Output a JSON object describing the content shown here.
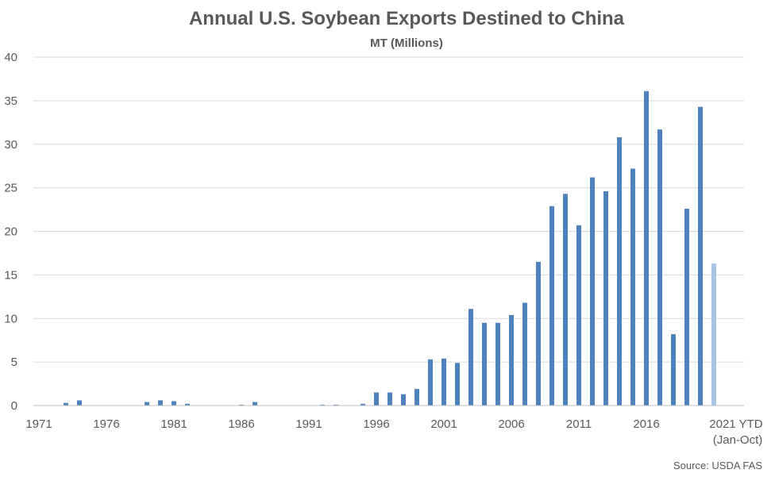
{
  "chart_data": {
    "type": "bar",
    "title": "Annual U.S. Soybean Exports Destined to China",
    "subtitle": "MT (Millions)",
    "xlabel": "",
    "ylabel": "",
    "ylim": [
      0,
      40
    ],
    "yticks": [
      0,
      5,
      10,
      15,
      20,
      25,
      30,
      35,
      40
    ],
    "grid": true,
    "legend": "none",
    "source": "Source: USDA FAS",
    "xtick_labels": [
      "1971",
      "1976",
      "1981",
      "1986",
      "1991",
      "1996",
      "2001",
      "2006",
      "2011",
      "2016"
    ],
    "last_tick_label": [
      "2021 YTD",
      "(Jan-Oct)"
    ],
    "categories": [
      "1971",
      "1972",
      "1973",
      "1974",
      "1975",
      "1976",
      "1977",
      "1978",
      "1979",
      "1980",
      "1981",
      "1982",
      "1983",
      "1984",
      "1985",
      "1986",
      "1987",
      "1988",
      "1989",
      "1990",
      "1991",
      "1992",
      "1993",
      "1994",
      "1995",
      "1996",
      "1997",
      "1998",
      "1999",
      "2000",
      "2001",
      "2002",
      "2003",
      "2004",
      "2005",
      "2006",
      "2007",
      "2008",
      "2009",
      "2010",
      "2011",
      "2012",
      "2013",
      "2014",
      "2015",
      "2016",
      "2017",
      "2018",
      "2019",
      "2020",
      "2021 YTD (Jan-Oct)"
    ],
    "values": [
      0,
      0,
      0.3,
      0.6,
      0,
      0,
      0,
      0,
      0.4,
      0.6,
      0.5,
      0.2,
      0,
      0,
      0,
      0.1,
      0.4,
      0,
      0,
      0,
      0,
      0.1,
      0.1,
      0,
      0.2,
      1.5,
      1.5,
      1.3,
      1.9,
      5.3,
      5.4,
      4.9,
      11.1,
      9.5,
      9.5,
      10.4,
      11.8,
      16.5,
      22.9,
      24.3,
      20.7,
      26.2,
      24.6,
      30.8,
      27.2,
      36.1,
      31.7,
      8.2,
      22.6,
      34.3,
      16.3
    ],
    "colors": {
      "bar": "#4f81bd",
      "highlight": "#a9c3e3"
    },
    "highlight_index": 50
  }
}
